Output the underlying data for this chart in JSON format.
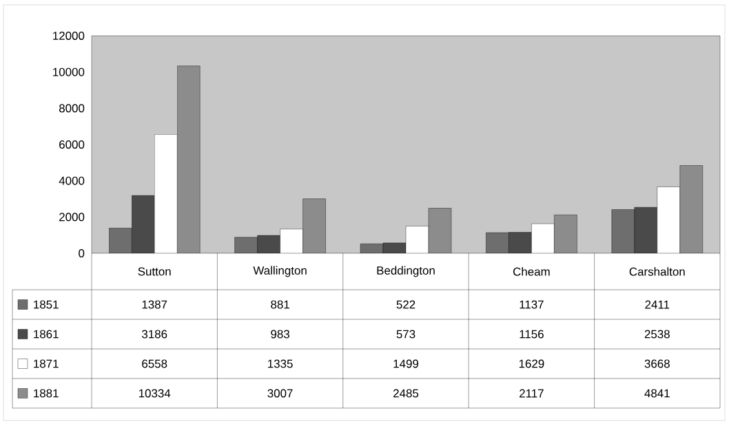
{
  "chart_data": {
    "type": "bar",
    "categories": [
      "Sutton",
      "Wallington",
      "Beddington",
      "Cheam",
      "Carshalton"
    ],
    "series": [
      {
        "name": "1851",
        "color": "#6e6e6e",
        "values": [
          1387,
          881,
          522,
          1137,
          2411
        ]
      },
      {
        "name": "1861",
        "color": "#4a4a4a",
        "values": [
          3186,
          983,
          573,
          1156,
          2538
        ]
      },
      {
        "name": "1871",
        "color": "#ffffff",
        "values": [
          6558,
          1335,
          1499,
          1629,
          3668
        ]
      },
      {
        "name": "1881",
        "color": "#8c8c8c",
        "values": [
          10334,
          3007,
          2485,
          2117,
          4841
        ]
      }
    ],
    "ylim": [
      0,
      12000
    ],
    "yticks": [
      0,
      2000,
      4000,
      6000,
      8000,
      10000,
      12000
    ],
    "data_labels": true,
    "legend": "bottom"
  }
}
